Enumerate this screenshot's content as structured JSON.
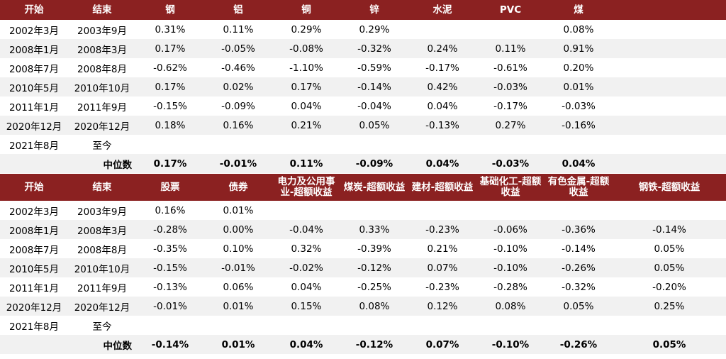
{
  "table1": {
    "headers": [
      "开始",
      "结束",
      "钢",
      "铝",
      "铜",
      "锌",
      "水泥",
      "PVC",
      "煤",
      ""
    ],
    "rows": [
      [
        "2002年3月",
        "2003年9月",
        "0.31%",
        "0.11%",
        "0.29%",
        "0.29%",
        "",
        "",
        "0.08%",
        ""
      ],
      [
        "2008年1月",
        "2008年3月",
        "0.17%",
        "-0.05%",
        "-0.08%",
        "-0.32%",
        "0.24%",
        "0.11%",
        "0.91%",
        ""
      ],
      [
        "2008年7月",
        "2008年8月",
        "-0.62%",
        "-0.46%",
        "-1.10%",
        "-0.59%",
        "-0.17%",
        "-0.61%",
        "0.20%",
        ""
      ],
      [
        "2010年5月",
        "2010年10月",
        "0.17%",
        "0.02%",
        "0.17%",
        "-0.14%",
        "0.42%",
        "-0.03%",
        "0.01%",
        ""
      ],
      [
        "2011年1月",
        "2011年9月",
        "-0.15%",
        "-0.09%",
        "0.04%",
        "-0.04%",
        "0.04%",
        "-0.17%",
        "-0.03%",
        ""
      ],
      [
        "2020年12月",
        "2020年12月",
        "0.18%",
        "0.16%",
        "0.21%",
        "0.05%",
        "-0.13%",
        "0.27%",
        "-0.16%",
        ""
      ],
      [
        "2021年8月",
        "至今",
        "",
        "",
        "",
        "",
        "",
        "",
        "",
        ""
      ]
    ],
    "median": {
      "label": "中位数",
      "values": [
        "0.17%",
        "-0.01%",
        "0.11%",
        "-0.09%",
        "0.04%",
        "-0.03%",
        "0.04%",
        ""
      ]
    }
  },
  "table2": {
    "headers": [
      "开始",
      "结束",
      "股票",
      "债券",
      "电力及公用事业-超额收益",
      "煤炭-超额收益",
      "建材-超额收益",
      "基础化工-超额收益",
      "有色金属-超额收益",
      "钢铁-超额收益"
    ],
    "rows": [
      [
        "2002年3月",
        "2003年9月",
        "0.16%",
        "0.01%",
        "",
        "",
        "",
        "",
        "",
        ""
      ],
      [
        "2008年1月",
        "2008年3月",
        "-0.28%",
        "0.00%",
        "-0.04%",
        "0.33%",
        "-0.23%",
        "-0.06%",
        "-0.36%",
        "-0.14%"
      ],
      [
        "2008年7月",
        "2008年8月",
        "-0.35%",
        "0.10%",
        "0.32%",
        "-0.39%",
        "0.21%",
        "-0.10%",
        "-0.14%",
        "0.05%"
      ],
      [
        "2010年5月",
        "2010年10月",
        "-0.15%",
        "-0.01%",
        "-0.02%",
        "-0.12%",
        "0.07%",
        "-0.10%",
        "-0.26%",
        "0.05%"
      ],
      [
        "2011年1月",
        "2011年9月",
        "-0.13%",
        "0.06%",
        "0.04%",
        "-0.25%",
        "-0.23%",
        "-0.28%",
        "-0.32%",
        "-0.20%"
      ],
      [
        "2020年12月",
        "2020年12月",
        "-0.01%",
        "0.01%",
        "0.15%",
        "0.08%",
        "0.12%",
        "0.08%",
        "0.05%",
        "0.25%"
      ],
      [
        "2021年8月",
        "至今",
        "",
        "",
        "",
        "",
        "",
        "",
        "",
        ""
      ]
    ],
    "median": {
      "label": "中位数",
      "values": [
        "-0.14%",
        "0.01%",
        "0.04%",
        "-0.12%",
        "0.07%",
        "-0.10%",
        "-0.26%",
        "0.05%"
      ]
    }
  },
  "colors": {
    "header_bg": "#8b2121",
    "header_text": "#ffffff",
    "alt_row_bg": "#f1f1f1"
  }
}
